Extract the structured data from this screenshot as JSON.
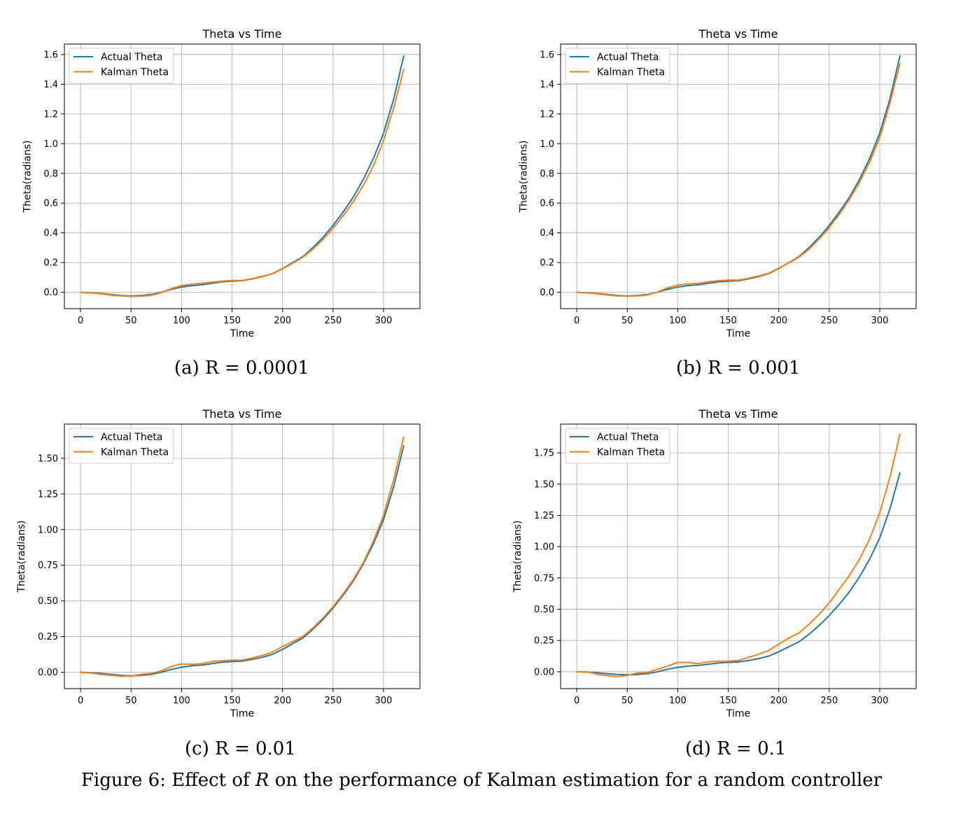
{
  "figure": {
    "caption_prefix": "Figure 6: Effect of ",
    "caption_symbol": "R",
    "caption_suffix": " on the performance of Kalman estimation for a random controller"
  },
  "subcaptions": [
    "(a) R = 0.0001",
    "(b) R = 0.001",
    "(c) R = 0.01",
    "(d) R = 0.1"
  ],
  "colors": {
    "actual": "#1f77b4",
    "kalman": "#ff7f0e",
    "grid": "#b0b0b0"
  },
  "chart_data": [
    {
      "type": "line",
      "title": "Theta vs Time",
      "xlabel": "Time",
      "ylabel": "Theta(radians)",
      "xlim": [
        -16,
        336
      ],
      "ylim": [
        -0.11,
        1.67
      ],
      "xticks": [
        0,
        50,
        100,
        150,
        200,
        250,
        300
      ],
      "yticks": [
        0.0,
        0.2,
        0.4,
        0.6,
        0.8,
        1.0,
        1.2,
        1.4,
        1.6
      ],
      "ytick_labels": [
        "0.0",
        "0.2",
        "0.4",
        "0.6",
        "0.8",
        "1.0",
        "1.2",
        "1.4",
        "1.6"
      ],
      "grid": true,
      "legend": "upper-left",
      "x": [
        0,
        10,
        20,
        30,
        40,
        50,
        60,
        70,
        80,
        90,
        100,
        110,
        120,
        130,
        140,
        150,
        160,
        170,
        180,
        190,
        200,
        210,
        220,
        230,
        240,
        250,
        260,
        270,
        280,
        290,
        300,
        310,
        320
      ],
      "series": [
        {
          "name": "Actual Theta",
          "values": [
            0.0,
            -0.003,
            -0.008,
            -0.015,
            -0.022,
            -0.025,
            -0.022,
            -0.015,
            0.0,
            0.02,
            0.035,
            0.045,
            0.05,
            0.06,
            0.07,
            0.075,
            0.078,
            0.09,
            0.105,
            0.125,
            0.16,
            0.2,
            0.24,
            0.3,
            0.37,
            0.45,
            0.54,
            0.64,
            0.76,
            0.9,
            1.07,
            1.3,
            1.59
          ]
        },
        {
          "name": "Kalman Theta",
          "values": [
            0.0,
            -0.004,
            -0.01,
            -0.018,
            -0.025,
            -0.028,
            -0.026,
            -0.02,
            -0.002,
            0.025,
            0.045,
            0.055,
            0.06,
            0.068,
            0.075,
            0.08,
            0.08,
            0.092,
            0.108,
            0.125,
            0.158,
            0.195,
            0.235,
            0.29,
            0.355,
            0.43,
            0.515,
            0.61,
            0.72,
            0.85,
            1.02,
            1.24,
            1.5
          ]
        }
      ]
    },
    {
      "type": "line",
      "title": "Theta vs Time",
      "xlabel": "Time",
      "ylabel": "Theta(radians)",
      "xlim": [
        -16,
        336
      ],
      "ylim": [
        -0.11,
        1.67
      ],
      "xticks": [
        0,
        50,
        100,
        150,
        200,
        250,
        300
      ],
      "yticks": [
        0.0,
        0.2,
        0.4,
        0.6,
        0.8,
        1.0,
        1.2,
        1.4,
        1.6
      ],
      "ytick_labels": [
        "0.0",
        "0.2",
        "0.4",
        "0.6",
        "0.8",
        "1.0",
        "1.2",
        "1.4",
        "1.6"
      ],
      "grid": true,
      "legend": "upper-left",
      "x": [
        0,
        10,
        20,
        30,
        40,
        50,
        60,
        70,
        80,
        90,
        100,
        110,
        120,
        130,
        140,
        150,
        160,
        170,
        180,
        190,
        200,
        210,
        220,
        230,
        240,
        250,
        260,
        270,
        280,
        290,
        300,
        310,
        320
      ],
      "series": [
        {
          "name": "Actual Theta",
          "values": [
            0.0,
            -0.003,
            -0.008,
            -0.015,
            -0.022,
            -0.025,
            -0.022,
            -0.015,
            0.0,
            0.02,
            0.035,
            0.045,
            0.05,
            0.06,
            0.07,
            0.075,
            0.078,
            0.09,
            0.105,
            0.125,
            0.16,
            0.2,
            0.24,
            0.3,
            0.37,
            0.45,
            0.54,
            0.64,
            0.76,
            0.9,
            1.07,
            1.3,
            1.59
          ]
        },
        {
          "name": "Kalman Theta",
          "values": [
            0.0,
            -0.004,
            -0.01,
            -0.018,
            -0.025,
            -0.027,
            -0.024,
            -0.018,
            0.002,
            0.03,
            0.048,
            0.056,
            0.06,
            0.07,
            0.078,
            0.082,
            0.082,
            0.094,
            0.11,
            0.128,
            0.162,
            0.198,
            0.236,
            0.29,
            0.358,
            0.435,
            0.525,
            0.625,
            0.74,
            0.875,
            1.04,
            1.27,
            1.54
          ]
        }
      ]
    },
    {
      "type": "line",
      "title": "Theta vs Time",
      "xlabel": "Time",
      "ylabel": "Theta(radians)",
      "xlim": [
        -16,
        336
      ],
      "ylim": [
        -0.115,
        1.74
      ],
      "xticks": [
        0,
        50,
        100,
        150,
        200,
        250,
        300
      ],
      "yticks": [
        0.0,
        0.25,
        0.5,
        0.75,
        1.0,
        1.25,
        1.5
      ],
      "ytick_labels": [
        "0.00",
        "0.25",
        "0.50",
        "0.75",
        "1.00",
        "1.25",
        "1.50"
      ],
      "grid": true,
      "legend": "upper-left",
      "x": [
        0,
        10,
        20,
        30,
        40,
        50,
        60,
        70,
        80,
        90,
        100,
        110,
        120,
        130,
        140,
        150,
        160,
        170,
        180,
        190,
        200,
        210,
        220,
        230,
        240,
        250,
        260,
        270,
        280,
        290,
        300,
        310,
        320
      ],
      "series": [
        {
          "name": "Actual Theta",
          "values": [
            0.0,
            -0.003,
            -0.008,
            -0.015,
            -0.022,
            -0.025,
            -0.022,
            -0.015,
            0.0,
            0.02,
            0.035,
            0.045,
            0.05,
            0.06,
            0.07,
            0.075,
            0.078,
            0.09,
            0.105,
            0.125,
            0.16,
            0.2,
            0.24,
            0.3,
            0.37,
            0.45,
            0.54,
            0.64,
            0.76,
            0.9,
            1.07,
            1.3,
            1.59
          ]
        },
        {
          "name": "Kalman Theta",
          "values": [
            0.0,
            -0.005,
            -0.015,
            -0.022,
            -0.028,
            -0.026,
            -0.015,
            -0.008,
            0.01,
            0.04,
            0.058,
            0.055,
            0.06,
            0.075,
            0.08,
            0.085,
            0.085,
            0.1,
            0.118,
            0.14,
            0.18,
            0.215,
            0.25,
            0.31,
            0.38,
            0.46,
            0.55,
            0.65,
            0.77,
            0.92,
            1.1,
            1.35,
            1.65
          ]
        }
      ]
    },
    {
      "type": "line",
      "title": "Theta vs Time",
      "xlabel": "Time",
      "ylabel": "Theta(radians)",
      "xlim": [
        -16,
        336
      ],
      "ylim": [
        -0.135,
        1.98
      ],
      "xticks": [
        0,
        50,
        100,
        150,
        200,
        250,
        300
      ],
      "yticks": [
        0.0,
        0.25,
        0.5,
        0.75,
        1.0,
        1.25,
        1.5,
        1.75
      ],
      "ytick_labels": [
        "0.00",
        "0.25",
        "0.50",
        "0.75",
        "1.00",
        "1.25",
        "1.50",
        "1.75"
      ],
      "grid": true,
      "legend": "upper-left",
      "x": [
        0,
        10,
        20,
        30,
        40,
        50,
        60,
        70,
        80,
        90,
        100,
        110,
        120,
        130,
        140,
        150,
        160,
        170,
        180,
        190,
        200,
        210,
        220,
        230,
        240,
        250,
        260,
        270,
        280,
        290,
        300,
        310,
        320
      ],
      "series": [
        {
          "name": "Actual Theta",
          "values": [
            0.0,
            -0.003,
            -0.008,
            -0.015,
            -0.022,
            -0.025,
            -0.022,
            -0.015,
            0.0,
            0.02,
            0.035,
            0.045,
            0.05,
            0.06,
            0.07,
            0.075,
            0.078,
            0.09,
            0.105,
            0.125,
            0.16,
            0.2,
            0.24,
            0.3,
            0.37,
            0.45,
            0.54,
            0.64,
            0.76,
            0.9,
            1.07,
            1.3,
            1.59
          ]
        },
        {
          "name": "Kalman Theta",
          "values": [
            0.0,
            0.0,
            -0.02,
            -0.03,
            -0.038,
            -0.03,
            -0.01,
            -0.005,
            0.02,
            0.045,
            0.075,
            0.075,
            0.065,
            0.08,
            0.085,
            0.085,
            0.09,
            0.115,
            0.14,
            0.17,
            0.22,
            0.27,
            0.31,
            0.38,
            0.46,
            0.55,
            0.66,
            0.77,
            0.9,
            1.06,
            1.27,
            1.55,
            1.9
          ]
        }
      ]
    }
  ]
}
